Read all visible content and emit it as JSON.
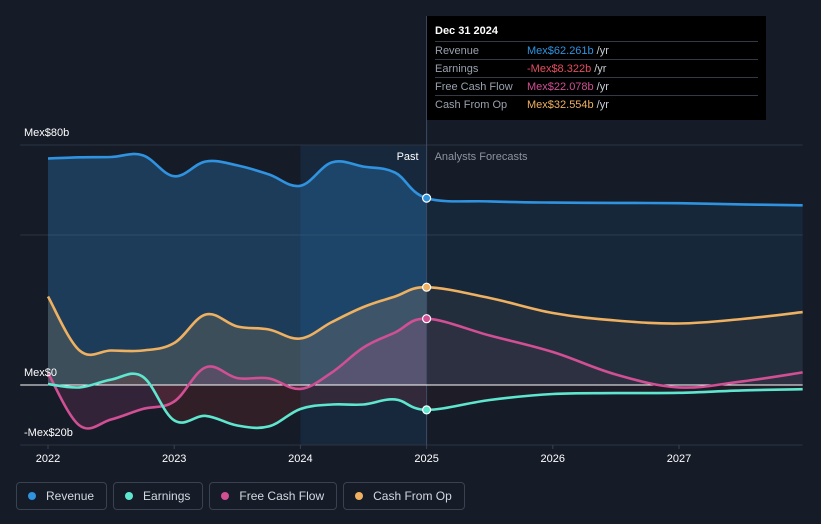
{
  "chart_data": {
    "type": "line",
    "x_labels": [
      "2022",
      "2023",
      "2024",
      "2025",
      "2026",
      "2027"
    ],
    "x_range": [
      2021.78,
      2027.98
    ],
    "y_labels": [
      {
        "value": 80,
        "text": "Mex$80b"
      },
      {
        "value": 0,
        "text": "Mex$0"
      },
      {
        "value": -20,
        "text": "-Mex$20b"
      }
    ],
    "ylim": [
      -20,
      80
    ],
    "past_label": "Past",
    "forecast_label": "Analysts Forecasts",
    "divider_x": 2025.0,
    "highlight_range": [
      2024.0,
      2025.0
    ],
    "series": [
      {
        "name": "Revenue",
        "color": "#2f93e0",
        "fill": true,
        "points": [
          [
            2022.0,
            75.5
          ],
          [
            2022.25,
            75.9
          ],
          [
            2022.5,
            76.0
          ],
          [
            2022.75,
            76.6
          ],
          [
            2023.0,
            69.6
          ],
          [
            2023.25,
            74.5
          ],
          [
            2023.5,
            73.2
          ],
          [
            2023.75,
            70.2
          ],
          [
            2024.0,
            66.4
          ],
          [
            2024.25,
            74.2
          ],
          [
            2024.5,
            72.8
          ],
          [
            2024.75,
            70.8
          ],
          [
            2025.0,
            62.3
          ],
          [
            2025.5,
            61.2
          ],
          [
            2026.0,
            60.8
          ],
          [
            2026.5,
            60.7
          ],
          [
            2027.0,
            60.6
          ],
          [
            2027.5,
            60.2
          ],
          [
            2027.98,
            59.9
          ]
        ]
      },
      {
        "name": "Earnings",
        "color": "#5ee6cf",
        "fill": true,
        "points": [
          [
            2022.0,
            0.3
          ],
          [
            2022.25,
            -0.8
          ],
          [
            2022.5,
            1.8
          ],
          [
            2022.75,
            2.8
          ],
          [
            2023.0,
            -11.8
          ],
          [
            2023.25,
            -10.3
          ],
          [
            2023.5,
            -13.5
          ],
          [
            2023.75,
            -13.8
          ],
          [
            2024.0,
            -8.0
          ],
          [
            2024.25,
            -6.5
          ],
          [
            2024.5,
            -6.5
          ],
          [
            2024.75,
            -4.8
          ],
          [
            2025.0,
            -8.3
          ],
          [
            2025.5,
            -5.0
          ],
          [
            2026.0,
            -3.0
          ],
          [
            2026.5,
            -2.7
          ],
          [
            2027.0,
            -2.6
          ],
          [
            2027.5,
            -1.8
          ],
          [
            2027.98,
            -1.4
          ]
        ]
      },
      {
        "name": "Free Cash Flow",
        "color": "#d14f94",
        "fill": true,
        "points": [
          [
            2022.0,
            4.0
          ],
          [
            2022.25,
            -13.5
          ],
          [
            2022.5,
            -11.5
          ],
          [
            2022.75,
            -8.0
          ],
          [
            2023.0,
            -5.5
          ],
          [
            2023.25,
            5.9
          ],
          [
            2023.5,
            2.3
          ],
          [
            2023.75,
            2.2
          ],
          [
            2024.0,
            -1.3
          ],
          [
            2024.25,
            4.2
          ],
          [
            2024.5,
            12.5
          ],
          [
            2024.75,
            17.5
          ],
          [
            2025.0,
            22.1
          ],
          [
            2025.5,
            16.5
          ],
          [
            2026.0,
            11.0
          ],
          [
            2026.5,
            3.5
          ],
          [
            2027.0,
            -0.8
          ],
          [
            2027.5,
            1.2
          ],
          [
            2027.98,
            4.2
          ]
        ]
      },
      {
        "name": "Cash From Op",
        "color": "#eeb061",
        "fill": true,
        "points": [
          [
            2022.0,
            29.5
          ],
          [
            2022.25,
            11.5
          ],
          [
            2022.5,
            11.5
          ],
          [
            2022.75,
            11.5
          ],
          [
            2023.0,
            14.0
          ],
          [
            2023.25,
            23.5
          ],
          [
            2023.5,
            19.5
          ],
          [
            2023.75,
            18.5
          ],
          [
            2024.0,
            15.5
          ],
          [
            2024.25,
            21.0
          ],
          [
            2024.5,
            26.0
          ],
          [
            2024.75,
            29.5
          ],
          [
            2025.0,
            32.6
          ],
          [
            2025.5,
            29.0
          ],
          [
            2026.0,
            24.0
          ],
          [
            2026.5,
            21.5
          ],
          [
            2027.0,
            20.5
          ],
          [
            2027.5,
            22.0
          ],
          [
            2027.98,
            24.3
          ]
        ]
      }
    ],
    "highlight_points": [
      {
        "series": "Revenue",
        "value": 62.3
      },
      {
        "series": "Earnings",
        "value": -8.3
      },
      {
        "series": "Free Cash Flow",
        "value": 22.1
      },
      {
        "series": "Cash From Op",
        "value": 32.6
      }
    ]
  },
  "tooltip": {
    "date": "Dec 31 2024",
    "rows": [
      {
        "label": "Revenue",
        "value": "Mex$62.261b",
        "unit": "/yr",
        "color": "#2f93e0"
      },
      {
        "label": "Earnings",
        "value": "-Mex$8.322b",
        "unit": "/yr",
        "color": "#e64d5e"
      },
      {
        "label": "Free Cash Flow",
        "value": "Mex$22.078b",
        "unit": "/yr",
        "color": "#d14f94"
      },
      {
        "label": "Cash From Op",
        "value": "Mex$32.554b",
        "unit": "/yr",
        "color": "#eeb061"
      }
    ]
  },
  "legend": [
    {
      "label": "Revenue",
      "color": "#2f93e0"
    },
    {
      "label": "Earnings",
      "color": "#5ee6cf"
    },
    {
      "label": "Free Cash Flow",
      "color": "#d14f94"
    },
    {
      "label": "Cash From Op",
      "color": "#eeb061"
    }
  ]
}
